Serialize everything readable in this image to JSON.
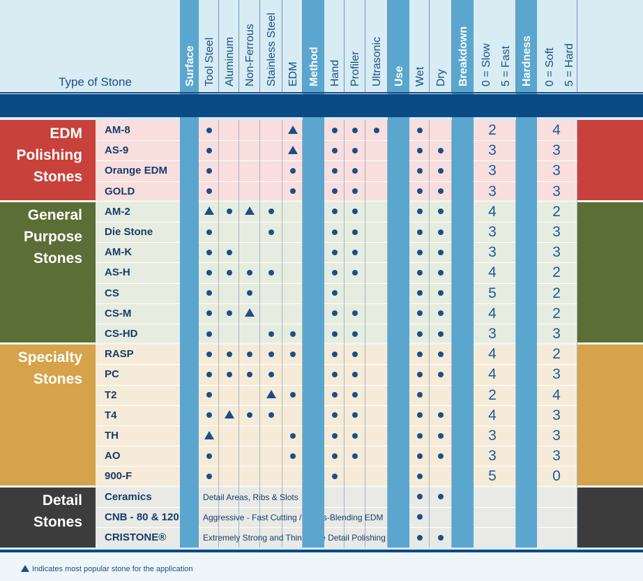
{
  "header": {
    "type_of_stone": "Type of Stone",
    "columns": [
      {
        "key": "surface",
        "label": "Surface",
        "section": true
      },
      {
        "key": "tool_steel",
        "label": "Tool Steel"
      },
      {
        "key": "aluminum",
        "label": "Aluminum"
      },
      {
        "key": "non_ferrous",
        "label": "Non-Ferrous"
      },
      {
        "key": "stainless_steel",
        "label": "Stainless Steel"
      },
      {
        "key": "edm",
        "label": "EDM"
      },
      {
        "key": "method",
        "label": "Method",
        "section": true
      },
      {
        "key": "hand",
        "label": "Hand"
      },
      {
        "key": "profiler",
        "label": "Profiler"
      },
      {
        "key": "ultrasonic",
        "label": "Ultrasonic"
      },
      {
        "key": "use",
        "label": "Use",
        "section": true
      },
      {
        "key": "wet",
        "label": "Wet"
      },
      {
        "key": "dry",
        "label": "Dry"
      },
      {
        "key": "breakdown",
        "label": "Breakdown",
        "section": true
      },
      {
        "key": "breakdown_scale",
        "label": "0 = Slow",
        "label2": "5 = Fast"
      },
      {
        "key": "hardness",
        "label": "Hardness",
        "section": true
      },
      {
        "key": "hardness_scale",
        "label": "0 = Soft",
        "label2": "5 = Hard"
      }
    ]
  },
  "colors": {
    "edm": "#c8413a",
    "general": "#5b6e35",
    "specialty": "#d6a24a",
    "detail": "#3c3c3c",
    "navy": "#0c4a86",
    "section_blue": "#5aa6cf",
    "mark": "#1b4f86"
  },
  "groups": [
    {
      "name_lines": [
        "EDM",
        "Polishing",
        "Stones"
      ],
      "color_key": "edm",
      "row_bg": "#f9dede",
      "rows": [
        {
          "name": "AM-8",
          "marks": {
            "tool_steel": "dot",
            "edm": "tri",
            "hand": "dot",
            "profiler": "dot",
            "ultrasonic": "dot",
            "wet": "dot"
          },
          "breakdown": "2",
          "hardness": "4"
        },
        {
          "name": "AS-9",
          "marks": {
            "tool_steel": "dot",
            "edm": "tri",
            "hand": "dot",
            "profiler": "dot",
            "wet": "dot",
            "dry": "dot"
          },
          "breakdown": "3",
          "hardness": "3"
        },
        {
          "name": "Orange EDM",
          "marks": {
            "tool_steel": "dot",
            "edm": "dot",
            "hand": "dot",
            "profiler": "dot",
            "wet": "dot",
            "dry": "dot"
          },
          "breakdown": "3",
          "hardness": "3"
        },
        {
          "name": "GOLD",
          "marks": {
            "tool_steel": "dot",
            "edm": "dot",
            "hand": "dot",
            "profiler": "dot",
            "wet": "dot",
            "dry": "dot"
          },
          "breakdown": "3",
          "hardness": "3"
        }
      ]
    },
    {
      "name_lines": [
        "General",
        "Purpose",
        "Stones"
      ],
      "color_key": "general",
      "row_bg": "#e6ecdf",
      "rows": [
        {
          "name": "AM-2",
          "marks": {
            "tool_steel": "tri",
            "aluminum": "dot",
            "non_ferrous": "tri",
            "stainless_steel": "dot",
            "hand": "dot",
            "profiler": "dot",
            "wet": "dot",
            "dry": "dot"
          },
          "breakdown": "4",
          "hardness": "2"
        },
        {
          "name": "Die Stone",
          "marks": {
            "tool_steel": "dot",
            "stainless_steel": "dot",
            "hand": "dot",
            "profiler": "dot",
            "wet": "dot",
            "dry": "dot"
          },
          "breakdown": "3",
          "hardness": "3"
        },
        {
          "name": "AM-K",
          "marks": {
            "tool_steel": "dot",
            "aluminum": "dot",
            "hand": "dot",
            "profiler": "dot",
            "wet": "dot",
            "dry": "dot"
          },
          "breakdown": "3",
          "hardness": "3"
        },
        {
          "name": "AS-H",
          "marks": {
            "tool_steel": "dot",
            "aluminum": "dot",
            "non_ferrous": "dot",
            "stainless_steel": "dot",
            "hand": "dot",
            "profiler": "dot",
            "wet": "dot",
            "dry": "dot"
          },
          "breakdown": "4",
          "hardness": "2"
        },
        {
          "name": "CS",
          "marks": {
            "tool_steel": "dot",
            "non_ferrous": "dot",
            "hand": "dot",
            "wet": "dot",
            "dry": "dot"
          },
          "breakdown": "5",
          "hardness": "2"
        },
        {
          "name": "CS-M",
          "marks": {
            "tool_steel": "dot",
            "aluminum": "dot",
            "non_ferrous": "tri",
            "hand": "dot",
            "profiler": "dot",
            "wet": "dot",
            "dry": "dot"
          },
          "breakdown": "4",
          "hardness": "2"
        },
        {
          "name": "CS-HD",
          "marks": {
            "tool_steel": "dot",
            "stainless_steel": "dot",
            "edm": "dot",
            "hand": "dot",
            "profiler": "dot",
            "wet": "dot",
            "dry": "dot"
          },
          "breakdown": "3",
          "hardness": "3"
        }
      ]
    },
    {
      "name_lines": [
        "Specialty",
        "Stones"
      ],
      "color_key": "specialty",
      "row_bg": "#f5ebd8",
      "rows": [
        {
          "name": "RASP",
          "marks": {
            "tool_steel": "dot",
            "aluminum": "dot",
            "non_ferrous": "dot",
            "stainless_steel": "dot",
            "edm": "dot",
            "hand": "dot",
            "profiler": "dot",
            "wet": "dot",
            "dry": "dot"
          },
          "breakdown": "4",
          "hardness": "2"
        },
        {
          "name": "PC",
          "marks": {
            "tool_steel": "dot",
            "aluminum": "dot",
            "non_ferrous": "dot",
            "stainless_steel": "dot",
            "hand": "dot",
            "profiler": "dot",
            "wet": "dot",
            "dry": "dot"
          },
          "breakdown": "4",
          "hardness": "3"
        },
        {
          "name": "T2",
          "marks": {
            "tool_steel": "dot",
            "stainless_steel": "tri",
            "edm": "dot",
            "hand": "dot",
            "profiler": "dot",
            "wet": "dot"
          },
          "breakdown": "2",
          "hardness": "4"
        },
        {
          "name": "T4",
          "marks": {
            "tool_steel": "dot",
            "aluminum": "tri",
            "non_ferrous": "dot",
            "stainless_steel": "dot",
            "hand": "dot",
            "profiler": "dot",
            "wet": "dot",
            "dry": "dot"
          },
          "breakdown": "4",
          "hardness": "3"
        },
        {
          "name": "TH",
          "marks": {
            "tool_steel": "tri",
            "edm": "dot",
            "hand": "dot",
            "profiler": "dot",
            "wet": "dot",
            "dry": "dot"
          },
          "breakdown": "3",
          "hardness": "3"
        },
        {
          "name": "AO",
          "marks": {
            "tool_steel": "dot",
            "edm": "dot",
            "hand": "dot",
            "profiler": "dot",
            "wet": "dot",
            "dry": "dot"
          },
          "breakdown": "3",
          "hardness": "3"
        },
        {
          "name": "900-F",
          "marks": {
            "tool_steel": "dot",
            "hand": "dot",
            "wet": "dot"
          },
          "breakdown": "5",
          "hardness": "0"
        }
      ]
    },
    {
      "name_lines": [
        "Detail",
        "Stones"
      ],
      "color_key": "detail",
      "row_bg": "#e9e9e6",
      "rows": [
        {
          "name": "Ceramics",
          "desc": "Detail Areas, Ribs & Slots",
          "marks": {
            "wet": "dot",
            "dry": "dot"
          },
          "breakdown": "",
          "hardness": ""
        },
        {
          "name": "CNB - 80 & 120",
          "desc": "Aggressive - Fast Cutting / Welds-Blending EDM",
          "marks": {
            "wet": "dot"
          },
          "breakdown": "",
          "hardness": ""
        },
        {
          "name": "CRISTONE®",
          "desc": "Extremely Strong and Thin - Fine Detail Polishing",
          "marks": {
            "wet": "dot",
            "dry": "dot"
          },
          "breakdown": "",
          "hardness": ""
        }
      ]
    }
  ],
  "footnote": "Indicates most popular stone for the application"
}
